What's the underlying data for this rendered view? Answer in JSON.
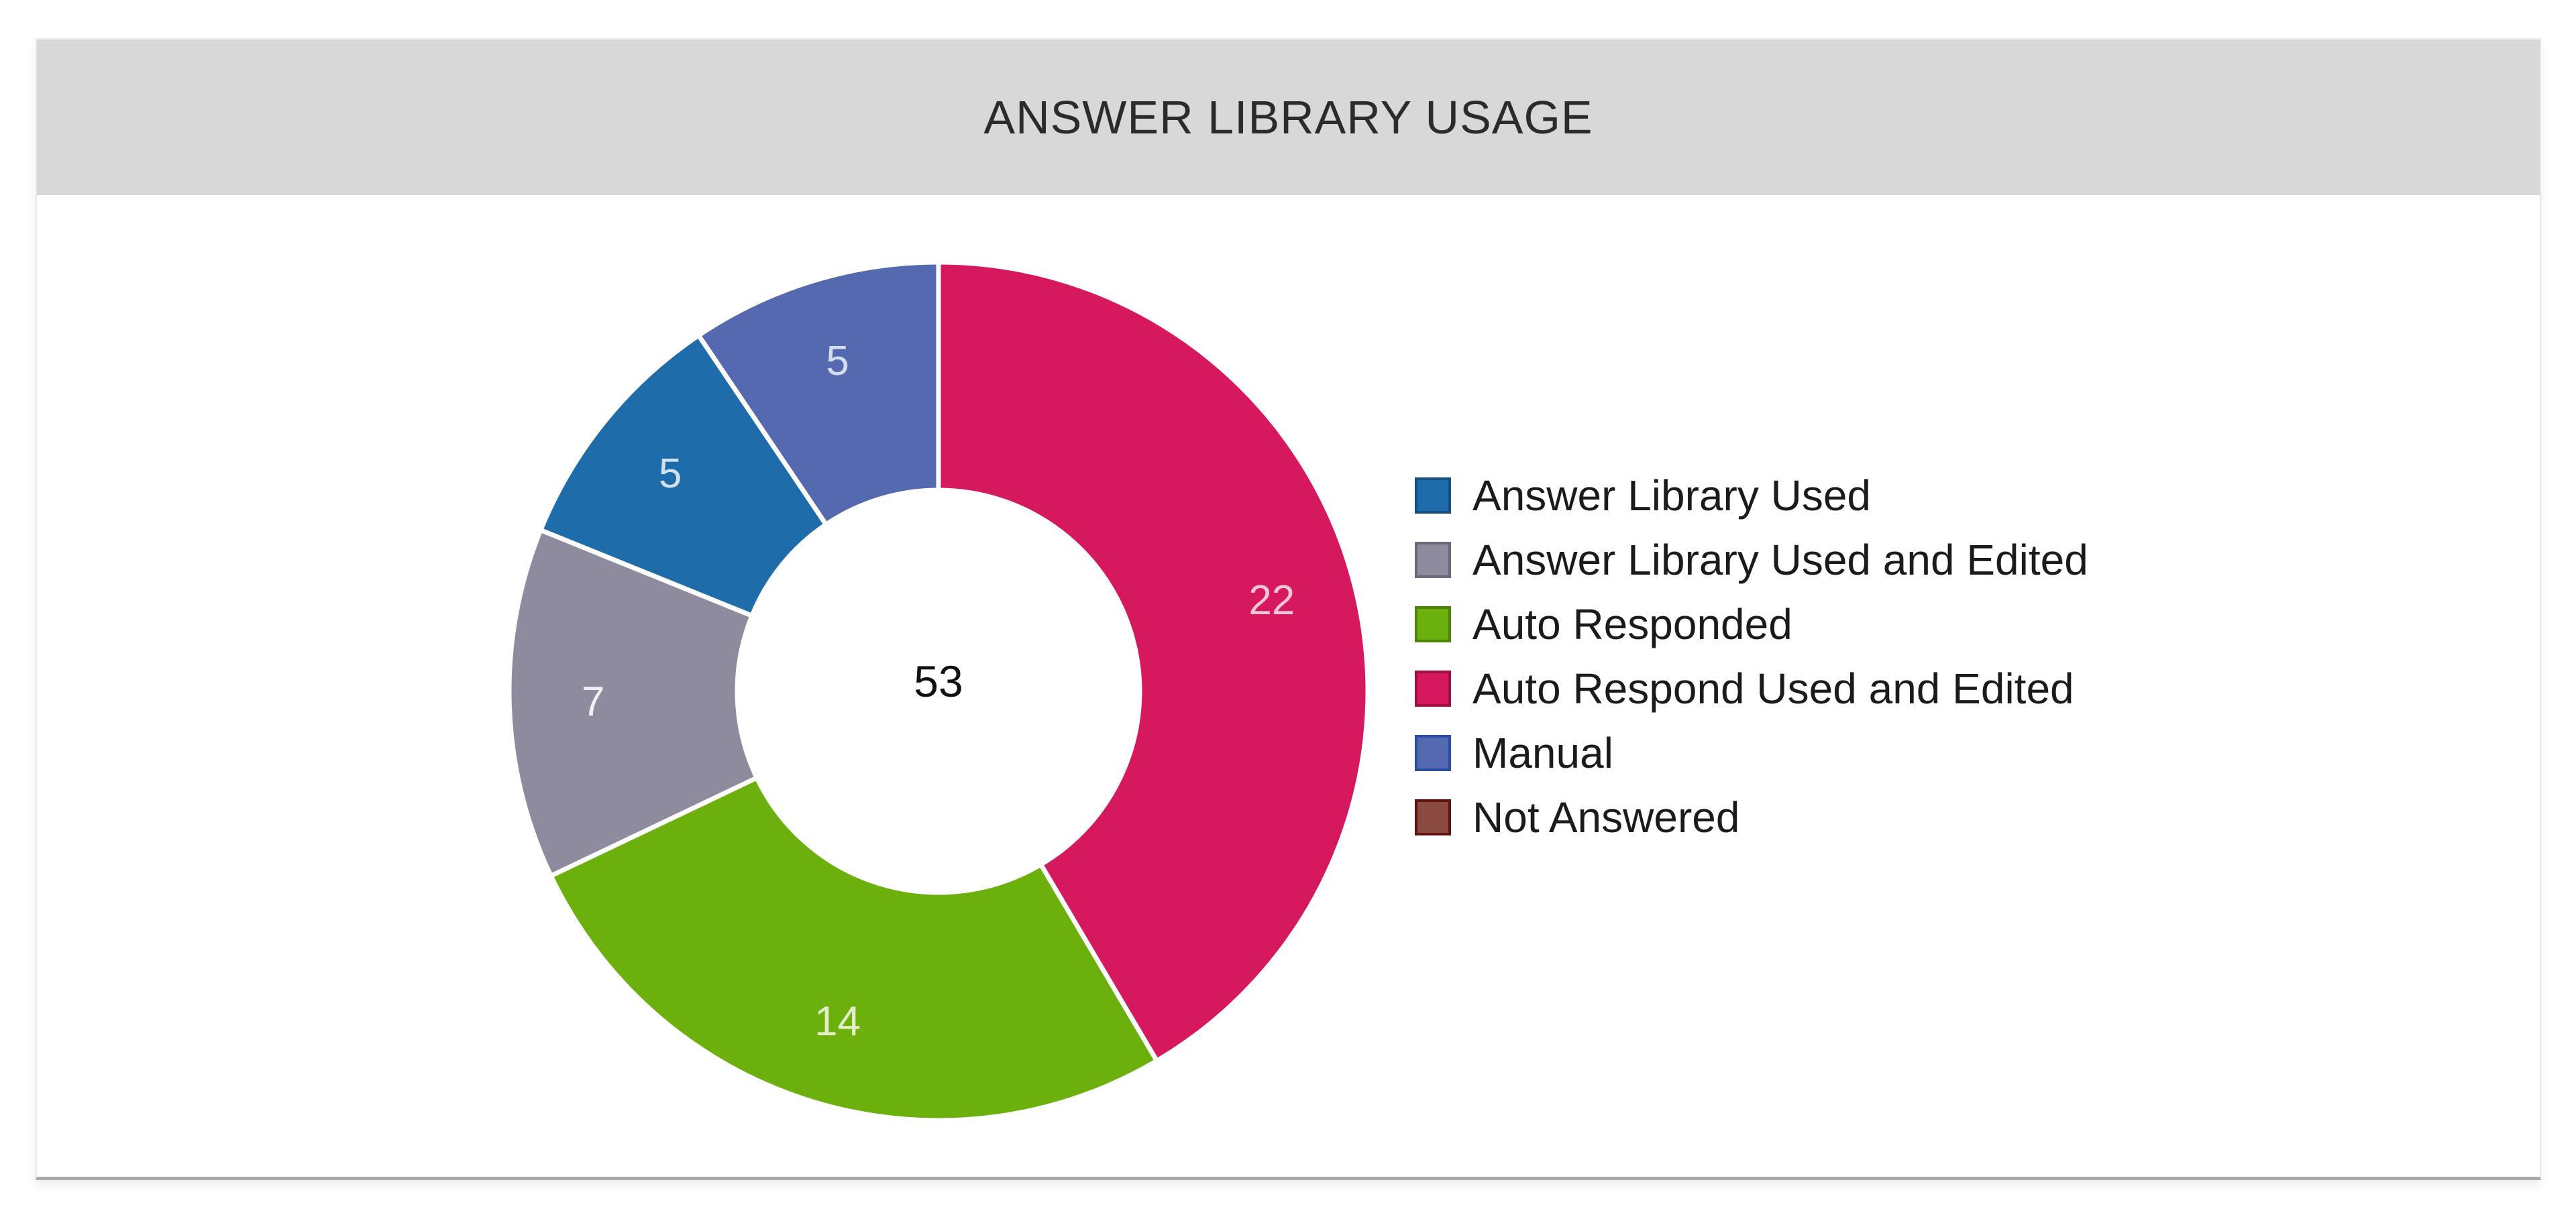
{
  "card": {
    "header": {
      "title": "ANSWER LIBRARY USAGE",
      "background": "#d8d8d8",
      "title_color": "#2b2b2b"
    },
    "body_background": "#ffffff",
    "bottom_border_color": "#a9a9a9"
  },
  "chart_data": {
    "type": "donut",
    "title": "ANSWER LIBRARY USAGE",
    "total": 53,
    "center_total_label": "53",
    "center_label_color": "#111111",
    "legend_position": "right",
    "direction": "clockwise",
    "start_angle": "top",
    "slice_gap_color": "#ffffff",
    "segments": [
      {
        "label": "Answer Library Used",
        "value": 5,
        "color": "#1f6cab",
        "swatch_border": "#164f81",
        "data_label_color": "#cfe0ee"
      },
      {
        "label": "Answer Library Used and Edited",
        "value": 7,
        "color": "#8e8b9e",
        "swatch_border": "#6b6879",
        "data_label_color": "#f0f0f4"
      },
      {
        "label": "Auto Responded",
        "value": 14,
        "color": "#6cb00e",
        "swatch_border": "#4e820a",
        "data_label_color": "#e6f0c8"
      },
      {
        "label": "Auto Respond Used and Edited",
        "value": 22,
        "color": "#d6195f",
        "swatch_border": "#9e1145",
        "data_label_color": "#f2c6d6"
      },
      {
        "label": "Manual",
        "value": 5,
        "color": "#5569b0",
        "swatch_border": "#2c4da4",
        "data_label_color": "#d6dcf0"
      },
      {
        "label": "Not Answered",
        "value": 0,
        "color": "#8b4a42",
        "swatch_border": "#5e150b",
        "data_label_color": "#ffffff"
      }
    ],
    "slice_order_clockwise_from_top": [
      "Auto Respond Used and Edited",
      "Auto Responded",
      "Answer Library Used and Edited",
      "Answer Library Used",
      "Manual"
    ],
    "slice_data_labels": [
      "22",
      "14",
      "7",
      "5",
      "5"
    ]
  }
}
